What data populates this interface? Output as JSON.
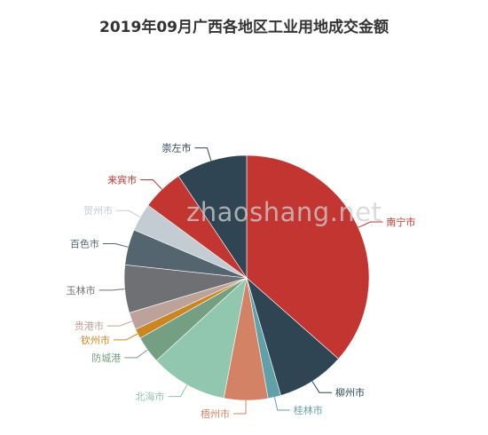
{
  "watermark": "zhaoshang.net",
  "chart_data": {
    "type": "pie",
    "title": "2019年09月广西各地区工业用地成交金额",
    "start_angle_deg": 90,
    "direction": "clockwise",
    "slices": [
      {
        "name": "南宁市",
        "value": 36.5,
        "color": "#c23531"
      },
      {
        "name": "柳州市",
        "value": 9.0,
        "color": "#2f4554"
      },
      {
        "name": "桂林市",
        "value": 1.7,
        "color": "#61a0a8"
      },
      {
        "name": "梧州市",
        "value": 5.8,
        "color": "#d48265"
      },
      {
        "name": "北海市",
        "value": 10.2,
        "color": "#91c7ae"
      },
      {
        "name": "防城港",
        "value": 3.6,
        "color": "#749f83"
      },
      {
        "name": "钦州市",
        "value": 1.3,
        "color": "#ca8622"
      },
      {
        "name": "贵港市",
        "value": 2.3,
        "color": "#bda29a"
      },
      {
        "name": "玉林市",
        "value": 6.3,
        "color": "#6e7074"
      },
      {
        "name": "百色市",
        "value": 4.7,
        "color": "#546570"
      },
      {
        "name": "贺州市",
        "value": 3.7,
        "color": "#c4ccd3"
      },
      {
        "name": "来宾市",
        "value": 5.5,
        "color": "#c23531"
      },
      {
        "name": "崇左市",
        "value": 9.4,
        "color": "#2f4554"
      }
    ]
  }
}
